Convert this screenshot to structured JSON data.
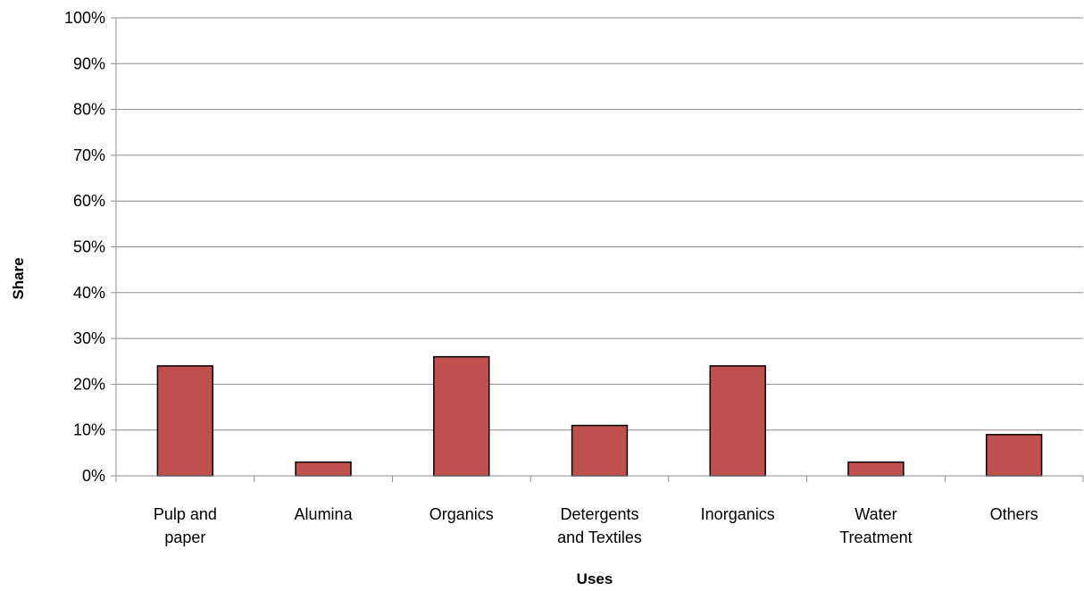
{
  "chart_data": {
    "type": "bar",
    "categories": [
      [
        "Pulp and",
        "paper"
      ],
      [
        "Alumina"
      ],
      [
        "Organics"
      ],
      [
        "Detergents",
        "and Textiles"
      ],
      [
        "Inorganics"
      ],
      [
        "Water",
        "Treatment"
      ],
      [
        "Others"
      ]
    ],
    "values": [
      24,
      3,
      26,
      11,
      24,
      3,
      9
    ],
    "xlabel": "Uses",
    "ylabel": "Share",
    "ylim": [
      0,
      100
    ],
    "yticks": [
      "0%",
      "10%",
      "20%",
      "30%",
      "40%",
      "50%",
      "60%",
      "70%",
      "80%",
      "90%",
      "100%"
    ],
    "grid": true,
    "legend": "none",
    "bar_color": "#c0504d",
    "bar_edge_color": "#000000",
    "grid_color": "#8c8c8c"
  }
}
